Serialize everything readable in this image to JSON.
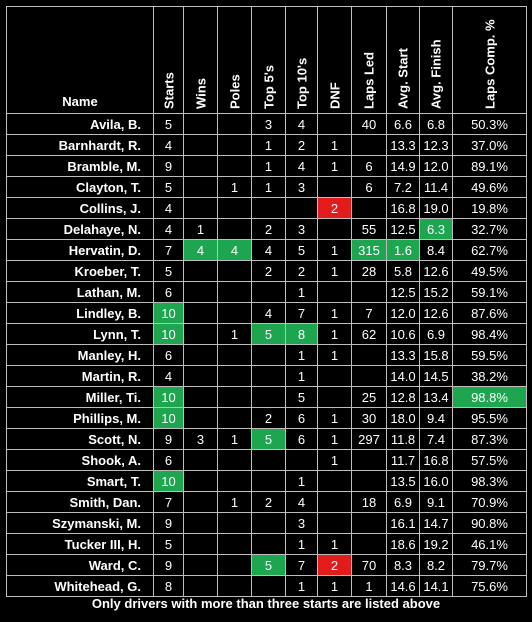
{
  "columns": [
    "Name",
    "Starts",
    "Wins",
    "Poles",
    "Top 5's",
    "Top 10's",
    "DNF",
    "Laps Led",
    "Avg. Start",
    "Avg. Finish",
    "Laps Comp. %"
  ],
  "rows": [
    {
      "cells": [
        "Avila, B.",
        "5",
        "",
        "",
        "3",
        "4",
        "",
        "40",
        "6.6",
        "6.8",
        "50.3%"
      ],
      "hl": {}
    },
    {
      "cells": [
        "Barnhardt, R.",
        "4",
        "",
        "",
        "1",
        "2",
        "1",
        "",
        "13.3",
        "12.3",
        "37.0%"
      ],
      "hl": {}
    },
    {
      "cells": [
        "Bramble, M.",
        "9",
        "",
        "",
        "1",
        "4",
        "1",
        "6",
        "14.9",
        "12.0",
        "89.1%"
      ],
      "hl": {}
    },
    {
      "cells": [
        "Clayton, T.",
        "5",
        "",
        "1",
        "1",
        "3",
        "",
        "6",
        "7.2",
        "11.4",
        "49.6%"
      ],
      "hl": {}
    },
    {
      "cells": [
        "Collins, J.",
        "4",
        "",
        "",
        "",
        "",
        "2",
        "",
        "16.8",
        "19.0",
        "19.8%"
      ],
      "hl": {
        "6": "r"
      }
    },
    {
      "cells": [
        "Delahaye, N.",
        "4",
        "1",
        "",
        "2",
        "3",
        "",
        "55",
        "12.5",
        "6.3",
        "32.7%"
      ],
      "hl": {
        "9": "g"
      }
    },
    {
      "cells": [
        "Hervatin, D.",
        "7",
        "4",
        "4",
        "4",
        "5",
        "1",
        "315",
        "1.6",
        "8.4",
        "62.7%"
      ],
      "hl": {
        "2": "g",
        "3": "g",
        "7": "g",
        "8": "g"
      }
    },
    {
      "cells": [
        "Kroeber, T.",
        "5",
        "",
        "",
        "2",
        "2",
        "1",
        "28",
        "5.8",
        "12.6",
        "49.5%"
      ],
      "hl": {}
    },
    {
      "cells": [
        "Lathan, M.",
        "6",
        "",
        "",
        "",
        "1",
        "",
        "",
        "12.5",
        "15.2",
        "59.1%"
      ],
      "hl": {}
    },
    {
      "cells": [
        "Lindley, B.",
        "10",
        "",
        "",
        "4",
        "7",
        "1",
        "7",
        "12.0",
        "12.6",
        "87.6%"
      ],
      "hl": {
        "1": "g"
      }
    },
    {
      "cells": [
        "Lynn, T.",
        "10",
        "",
        "1",
        "5",
        "8",
        "1",
        "62",
        "10.6",
        "6.9",
        "98.4%"
      ],
      "hl": {
        "1": "g",
        "4": "g",
        "5": "g"
      }
    },
    {
      "cells": [
        "Manley, H.",
        "6",
        "",
        "",
        "",
        "1",
        "1",
        "",
        "13.3",
        "15.8",
        "59.5%"
      ],
      "hl": {}
    },
    {
      "cells": [
        "Martin, R.",
        "4",
        "",
        "",
        "",
        "1",
        "",
        "",
        "14.0",
        "14.5",
        "38.2%"
      ],
      "hl": {}
    },
    {
      "cells": [
        "Miller, Ti.",
        "10",
        "",
        "",
        "",
        "5",
        "",
        "25",
        "12.8",
        "13.4",
        "98.8%"
      ],
      "hl": {
        "1": "g",
        "10": "g"
      }
    },
    {
      "cells": [
        "Phillips, M.",
        "10",
        "",
        "",
        "2",
        "6",
        "1",
        "30",
        "18.0",
        "9.4",
        "95.5%"
      ],
      "hl": {
        "1": "g"
      }
    },
    {
      "cells": [
        "Scott, N.",
        "9",
        "3",
        "1",
        "5",
        "6",
        "1",
        "297",
        "11.8",
        "7.4",
        "87.3%"
      ],
      "hl": {
        "4": "g"
      }
    },
    {
      "cells": [
        "Shook, A.",
        "6",
        "",
        "",
        "",
        "",
        "1",
        "",
        "11.7",
        "16.8",
        "57.5%"
      ],
      "hl": {}
    },
    {
      "cells": [
        "Smart, T.",
        "10",
        "",
        "",
        "",
        "1",
        "",
        "",
        "13.5",
        "16.0",
        "98.3%"
      ],
      "hl": {
        "1": "g"
      }
    },
    {
      "cells": [
        "Smith, Dan.",
        "7",
        "",
        "1",
        "2",
        "4",
        "",
        "18",
        "6.9",
        "9.1",
        "70.9%"
      ],
      "hl": {}
    },
    {
      "cells": [
        "Szymanski, M.",
        "9",
        "",
        "",
        "",
        "3",
        "",
        "",
        "16.1",
        "14.7",
        "90.8%"
      ],
      "hl": {}
    },
    {
      "cells": [
        "Tucker III, H.",
        "5",
        "",
        "",
        "",
        "1",
        "1",
        "",
        "18.6",
        "19.2",
        "46.1%"
      ],
      "hl": {}
    },
    {
      "cells": [
        "Ward, C.",
        "9",
        "",
        "",
        "5",
        "7",
        "2",
        "70",
        "8.3",
        "8.2",
        "79.7%"
      ],
      "hl": {
        "4": "g",
        "6": "r"
      }
    },
    {
      "cells": [
        "Whitehead, G.",
        "8",
        "",
        "",
        "",
        "1",
        "1",
        "1",
        "14.6",
        "14.1",
        "75.6%"
      ],
      "hl": {}
    }
  ],
  "footnote": "Only drivers with more than three starts are listed above",
  "colors": {
    "highlight_green": "#1ea54f",
    "highlight_red": "#e21b1b"
  }
}
